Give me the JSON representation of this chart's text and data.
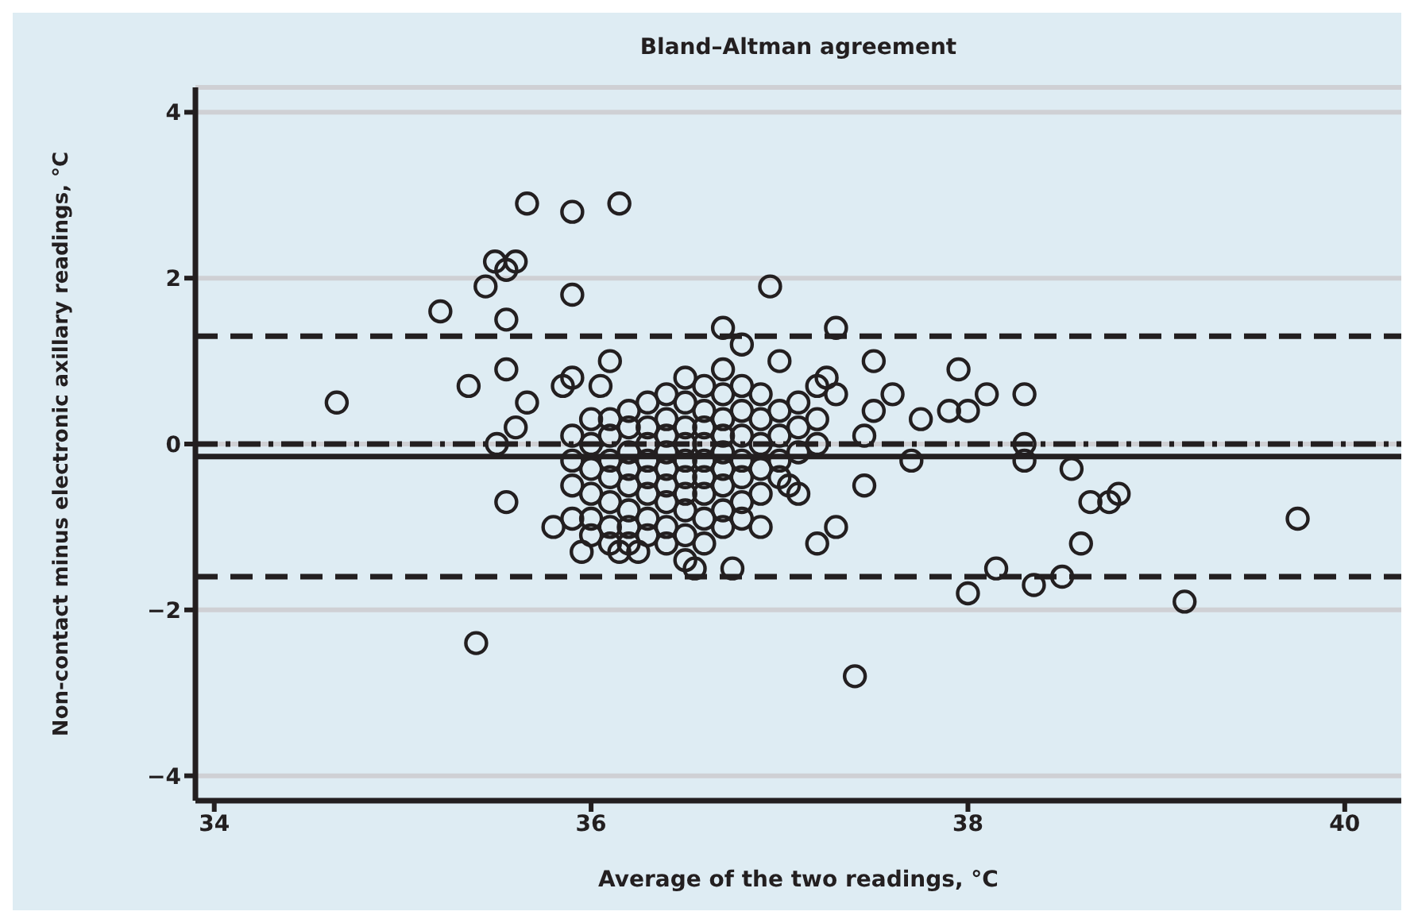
{
  "chart_data": {
    "type": "scatter",
    "title": "Bland–Altman agreement",
    "xlabel": "Average of the two readings, °C",
    "ylabel": "Non-contact minus electronic axillary readings, °C",
    "xlim": [
      33.9,
      40.3
    ],
    "xticks": [
      34,
      36,
      38,
      40
    ],
    "ylim": [
      -4.3,
      4.3
    ],
    "yticks": [
      4,
      2,
      0,
      -2,
      -4
    ],
    "grid": "y",
    "marker": "circle",
    "legend": false,
    "ref_lines": [
      {
        "axis": "y",
        "value": 1.3,
        "line_style": "dashed",
        "color": "#231f20"
      },
      {
        "axis": "y",
        "value": -1.6,
        "line_style": "dashed",
        "color": "#231f20"
      },
      {
        "axis": "y",
        "value": 0,
        "line_style": "dashdot",
        "color": "#231f20"
      },
      {
        "axis": "y",
        "value": -0.15,
        "line_style": "solid",
        "color": "#231f20"
      }
    ],
    "series": [
      {
        "color": "#231f20",
        "x": [
          34.65,
          35.2,
          35.35,
          35.39,
          35.44,
          35.49,
          35.55,
          35.6,
          35.55,
          35.55,
          35.66,
          35.66,
          35.6,
          35.5,
          35.55,
          35.9,
          35.9,
          35.85,
          35.9,
          36.05,
          36.1,
          36.15,
          35.8,
          35.95,
          36.15,
          36.25,
          36.95,
          36.7,
          36.8,
          37.3,
          37.0,
          36.55,
          36.75,
          37.2,
          37.3,
          37.1,
          37.05,
          37.5,
          37.95,
          37.6,
          37.3,
          37.5,
          37.75,
          37.9,
          38.0,
          38.1,
          38.3,
          38.3,
          38.3,
          37.45,
          37.7,
          37.45,
          38.55,
          38.65,
          38.75,
          38.8,
          38.6,
          38.15,
          38.0,
          38.35,
          38.5,
          39.15,
          39.75,
          37.4,
          37.25,
          35.9,
          35.9,
          35.9,
          35.9,
          36.0,
          36.0,
          36.0,
          36.0,
          36.0,
          36.0,
          36.1,
          36.1,
          36.1,
          36.1,
          36.1,
          36.1,
          36.1,
          36.2,
          36.2,
          36.2,
          36.2,
          36.2,
          36.2,
          36.2,
          36.2,
          36.3,
          36.3,
          36.3,
          36.3,
          36.3,
          36.3,
          36.3,
          36.3,
          36.4,
          36.4,
          36.4,
          36.4,
          36.4,
          36.4,
          36.4,
          36.4,
          36.4,
          36.5,
          36.5,
          36.5,
          36.5,
          36.5,
          36.5,
          36.5,
          36.5,
          36.5,
          36.5,
          36.6,
          36.6,
          36.6,
          36.6,
          36.6,
          36.6,
          36.6,
          36.6,
          36.6,
          36.7,
          36.7,
          36.7,
          36.7,
          36.7,
          36.7,
          36.7,
          36.7,
          36.7,
          36.8,
          36.8,
          36.8,
          36.8,
          36.8,
          36.8,
          36.8,
          36.9,
          36.9,
          36.9,
          36.9,
          36.9,
          36.9,
          37.0,
          37.0,
          37.0,
          37.0,
          37.1,
          37.1,
          37.1,
          37.2,
          37.2,
          37.2
        ],
        "values": [
          0.5,
          1.6,
          0.7,
          -2.4,
          1.9,
          2.2,
          2.1,
          2.2,
          1.5,
          0.9,
          2.9,
          0.5,
          0.2,
          0.0,
          -0.7,
          2.8,
          1.8,
          0.7,
          0.8,
          0.7,
          1.0,
          2.9,
          -1.0,
          -1.3,
          -1.3,
          -1.3,
          1.9,
          1.4,
          1.2,
          1.4,
          1.0,
          -1.5,
          -1.5,
          -1.2,
          -1.0,
          -0.6,
          -0.5,
          1.0,
          0.9,
          0.6,
          0.6,
          0.4,
          0.3,
          0.4,
          0.4,
          0.6,
          0.6,
          0.0,
          -0.2,
          0.1,
          -0.2,
          -0.5,
          -0.3,
          -0.7,
          -0.7,
          -0.6,
          -1.2,
          -1.5,
          -1.8,
          -1.7,
          -1.6,
          -1.9,
          -0.9,
          -2.8,
          0.8,
          0.1,
          -0.2,
          -0.5,
          -0.9,
          0.3,
          0.0,
          -0.3,
          -0.6,
          -0.9,
          -1.1,
          0.3,
          0.1,
          -0.2,
          -0.4,
          -0.7,
          -1.0,
          -1.2,
          0.4,
          0.2,
          -0.1,
          -0.3,
          -0.5,
          -0.8,
          -1.0,
          -1.2,
          0.5,
          0.2,
          0.0,
          -0.2,
          -0.4,
          -0.6,
          -0.9,
          -1.1,
          0.6,
          0.3,
          0.1,
          -0.1,
          -0.3,
          -0.5,
          -0.7,
          -1.0,
          -1.2,
          0.8,
          0.5,
          0.2,
          0.0,
          -0.2,
          -0.4,
          -0.6,
          -0.8,
          -1.1,
          -1.4,
          0.7,
          0.4,
          0.2,
          0.0,
          -0.2,
          -0.4,
          -0.6,
          -0.9,
          -1.2,
          0.9,
          0.6,
          0.3,
          0.1,
          -0.1,
          -0.3,
          -0.5,
          -0.8,
          -1.0,
          0.7,
          0.4,
          0.1,
          -0.2,
          -0.4,
          -0.7,
          -0.9,
          0.6,
          0.3,
          0.0,
          -0.3,
          -0.6,
          -1.0,
          0.4,
          0.1,
          -0.2,
          -0.4,
          0.5,
          0.2,
          -0.1,
          0.7,
          0.3,
          0.0
        ]
      }
    ]
  }
}
